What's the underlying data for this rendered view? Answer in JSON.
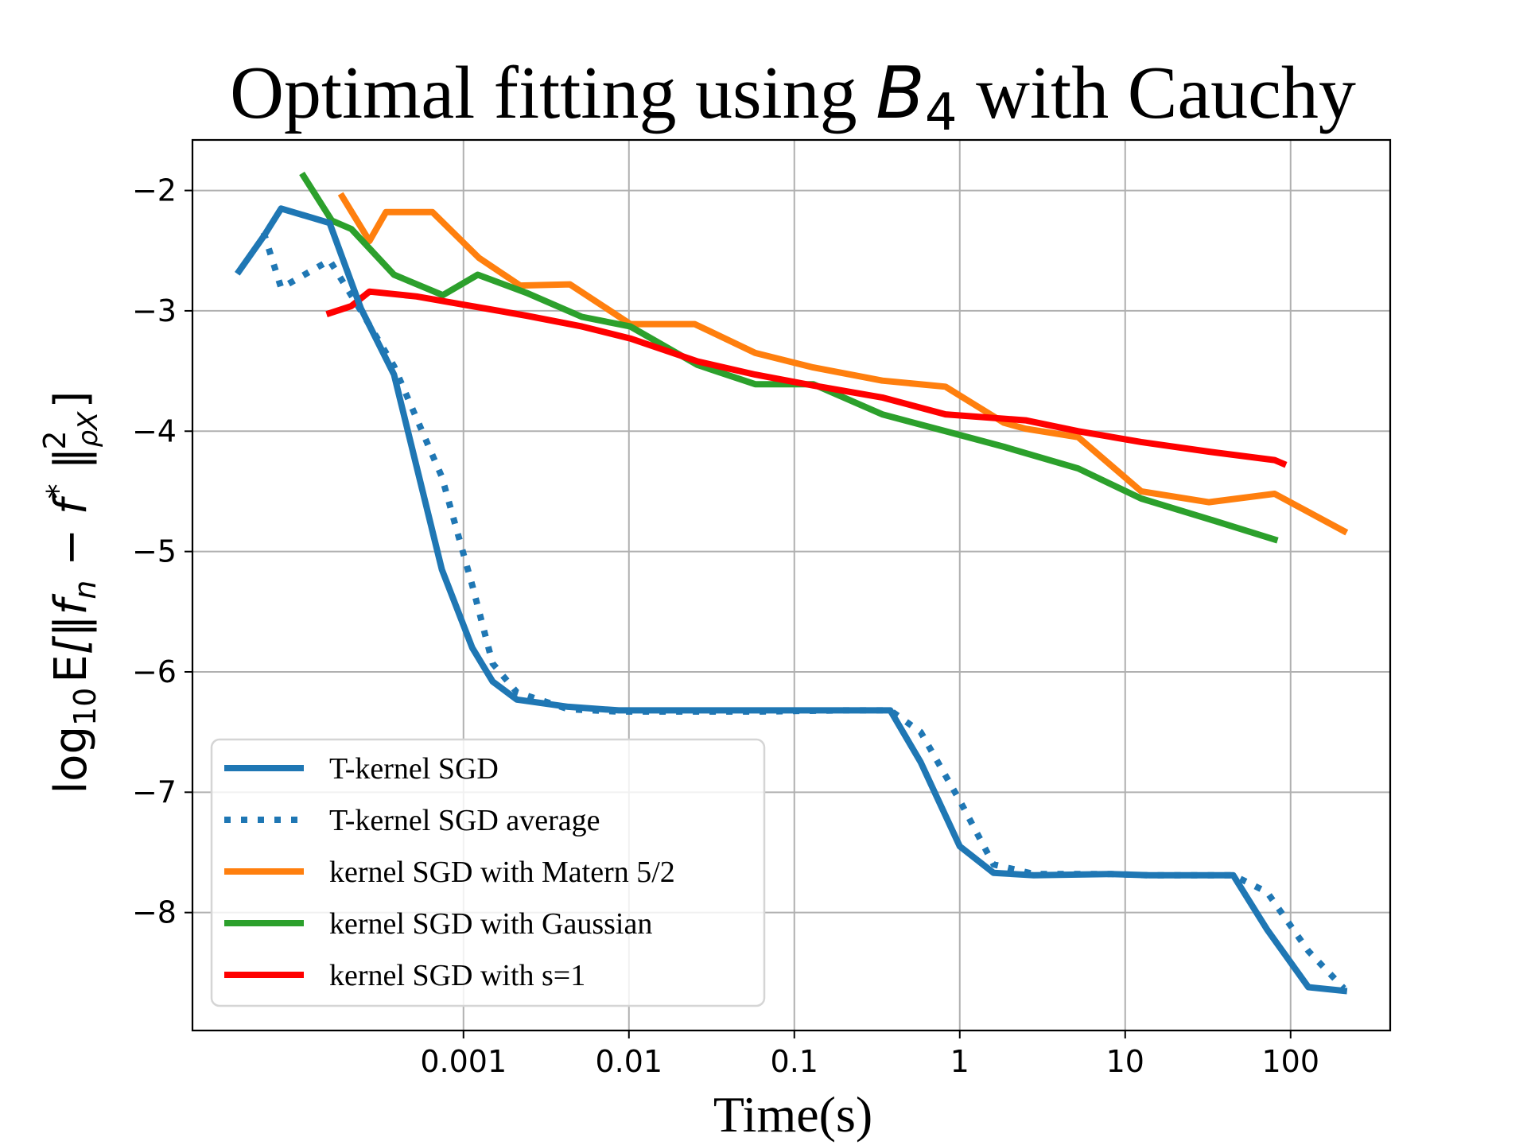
{
  "chart_data": {
    "type": "line",
    "title": {
      "prefix": "Optimal fitting using ",
      "symbol": "B",
      "subscript": "4",
      "suffix": " with Cauchy"
    },
    "xlabel": "Time(s)",
    "ylabel": {
      "log": "log",
      "log_sub": "10",
      "expect": "E",
      "body": "[‖f",
      "n_sub": "n",
      "minus": " − f",
      "star_sup": "*",
      "norm_close": " ‖",
      "rho_sub": "ρX",
      "two_sup": "2",
      "close": "]"
    },
    "x_scale": "log",
    "xlim": [
      2.3e-05,
      400
    ],
    "ylim": [
      -8.98,
      -1.58
    ],
    "x_ticks": [
      {
        "value": 0.001,
        "label": "0.001"
      },
      {
        "value": 0.01,
        "label": "0.01"
      },
      {
        "value": 0.1,
        "label": "0.1"
      },
      {
        "value": 1,
        "label": "1"
      },
      {
        "value": 10,
        "label": "10"
      },
      {
        "value": 100,
        "label": "100"
      }
    ],
    "y_ticks": [
      {
        "value": -2,
        "label": "−2"
      },
      {
        "value": -3,
        "label": "−3"
      },
      {
        "value": -4,
        "label": "−4"
      },
      {
        "value": -5,
        "label": "−5"
      },
      {
        "value": -6,
        "label": "−6"
      },
      {
        "value": -7,
        "label": "−7"
      },
      {
        "value": -8,
        "label": "−8"
      }
    ],
    "grid": true,
    "legend_position": "lower-left",
    "series": [
      {
        "name": "T-kernel SGD",
        "color": "#1f77b4",
        "style": "solid",
        "points": [
          [
            4.4e-05,
            -2.67
          ],
          [
            6.2e-05,
            -2.38
          ],
          [
            7.9e-05,
            -2.15
          ],
          [
            0.000155,
            -2.27
          ],
          [
            0.00024,
            -2.98
          ],
          [
            0.00038,
            -3.53
          ],
          [
            0.00074,
            -5.15
          ],
          [
            0.00113,
            -5.8
          ],
          [
            0.0015,
            -6.08
          ],
          [
            0.0021,
            -6.23
          ],
          [
            0.0043,
            -6.29
          ],
          [
            0.0087,
            -6.32
          ],
          [
            0.06,
            -6.32
          ],
          [
            0.2,
            -6.32
          ],
          [
            0.38,
            -6.32
          ],
          [
            0.58,
            -6.75
          ],
          [
            1.0,
            -7.45
          ],
          [
            1.6,
            -7.67
          ],
          [
            2.8,
            -7.69
          ],
          [
            8.0,
            -7.68
          ],
          [
            14.0,
            -7.69
          ],
          [
            45.0,
            -7.69
          ],
          [
            72.0,
            -8.14
          ],
          [
            128.0,
            -8.62
          ],
          [
            210.0,
            -8.65
          ]
        ]
      },
      {
        "name": "T-kernel SGD average",
        "color": "#1f77b4",
        "style": "dotted",
        "points": [
          [
            6.2e-05,
            -2.35
          ],
          [
            7.9e-05,
            -2.81
          ],
          [
            0.000155,
            -2.58
          ],
          [
            0.00024,
            -3.0
          ],
          [
            0.00038,
            -3.46
          ],
          [
            0.00074,
            -4.38
          ],
          [
            0.00113,
            -5.28
          ],
          [
            0.0015,
            -5.93
          ],
          [
            0.0021,
            -6.17
          ],
          [
            0.0043,
            -6.31
          ],
          [
            0.0087,
            -6.33
          ],
          [
            0.06,
            -6.33
          ],
          [
            0.2,
            -6.32
          ],
          [
            0.38,
            -6.32
          ],
          [
            0.58,
            -6.5
          ],
          [
            1.0,
            -7.07
          ],
          [
            1.6,
            -7.6
          ],
          [
            2.8,
            -7.68
          ],
          [
            8.0,
            -7.68
          ],
          [
            14.0,
            -7.69
          ],
          [
            45.0,
            -7.69
          ],
          [
            72.0,
            -7.83
          ],
          [
            128.0,
            -8.32
          ],
          [
            210.0,
            -8.63
          ]
        ]
      },
      {
        "name": "kernel SGD with Matern 5/2",
        "color": "#ff7f0e",
        "style": "solid",
        "points": [
          [
            0.000185,
            -2.05
          ],
          [
            0.00027,
            -2.42
          ],
          [
            0.00034,
            -2.18
          ],
          [
            0.00065,
            -2.18
          ],
          [
            0.00124,
            -2.56
          ],
          [
            0.0022,
            -2.79
          ],
          [
            0.0044,
            -2.78
          ],
          [
            0.0102,
            -3.11
          ],
          [
            0.025,
            -3.11
          ],
          [
            0.058,
            -3.35
          ],
          [
            0.13,
            -3.47
          ],
          [
            0.34,
            -3.58
          ],
          [
            0.82,
            -3.63
          ],
          [
            1.85,
            -3.93
          ],
          [
            2.5,
            -3.98
          ],
          [
            5.2,
            -4.05
          ],
          [
            12.5,
            -4.5
          ],
          [
            32.0,
            -4.59
          ],
          [
            80.0,
            -4.52
          ],
          [
            210.0,
            -4.83
          ]
        ]
      },
      {
        "name": "kernel SGD with Gaussian",
        "color": "#2ca02c",
        "style": "solid",
        "points": [
          [
            0.000108,
            -1.88
          ],
          [
            0.00016,
            -2.25
          ],
          [
            0.00021,
            -2.32
          ],
          [
            0.00038,
            -2.7
          ],
          [
            0.00075,
            -2.87
          ],
          [
            0.00122,
            -2.7
          ],
          [
            0.0024,
            -2.85
          ],
          [
            0.0052,
            -3.05
          ],
          [
            0.0102,
            -3.13
          ],
          [
            0.026,
            -3.45
          ],
          [
            0.058,
            -3.61
          ],
          [
            0.13,
            -3.61
          ],
          [
            0.34,
            -3.86
          ],
          [
            0.82,
            -4.0
          ],
          [
            1.85,
            -4.13
          ],
          [
            5.2,
            -4.31
          ],
          [
            12.5,
            -4.56
          ],
          [
            32.0,
            -4.73
          ],
          [
            80.0,
            -4.9
          ]
        ]
      },
      {
        "name": "kernel SGD with s=1",
        "color": "#ff0000",
        "style": "solid",
        "points": [
          [
            0.000155,
            -3.02
          ],
          [
            0.00021,
            -2.96
          ],
          [
            0.00027,
            -2.84
          ],
          [
            0.00052,
            -2.88
          ],
          [
            0.00112,
            -2.96
          ],
          [
            0.0024,
            -3.04
          ],
          [
            0.0052,
            -3.13
          ],
          [
            0.0102,
            -3.23
          ],
          [
            0.026,
            -3.42
          ],
          [
            0.058,
            -3.53
          ],
          [
            0.13,
            -3.62
          ],
          [
            0.34,
            -3.72
          ],
          [
            0.82,
            -3.86
          ],
          [
            2.5,
            -3.91
          ],
          [
            5.2,
            -4.0
          ],
          [
            12.5,
            -4.09
          ],
          [
            32.0,
            -4.17
          ],
          [
            80.0,
            -4.24
          ],
          [
            90.0,
            -4.27
          ]
        ]
      }
    ]
  }
}
